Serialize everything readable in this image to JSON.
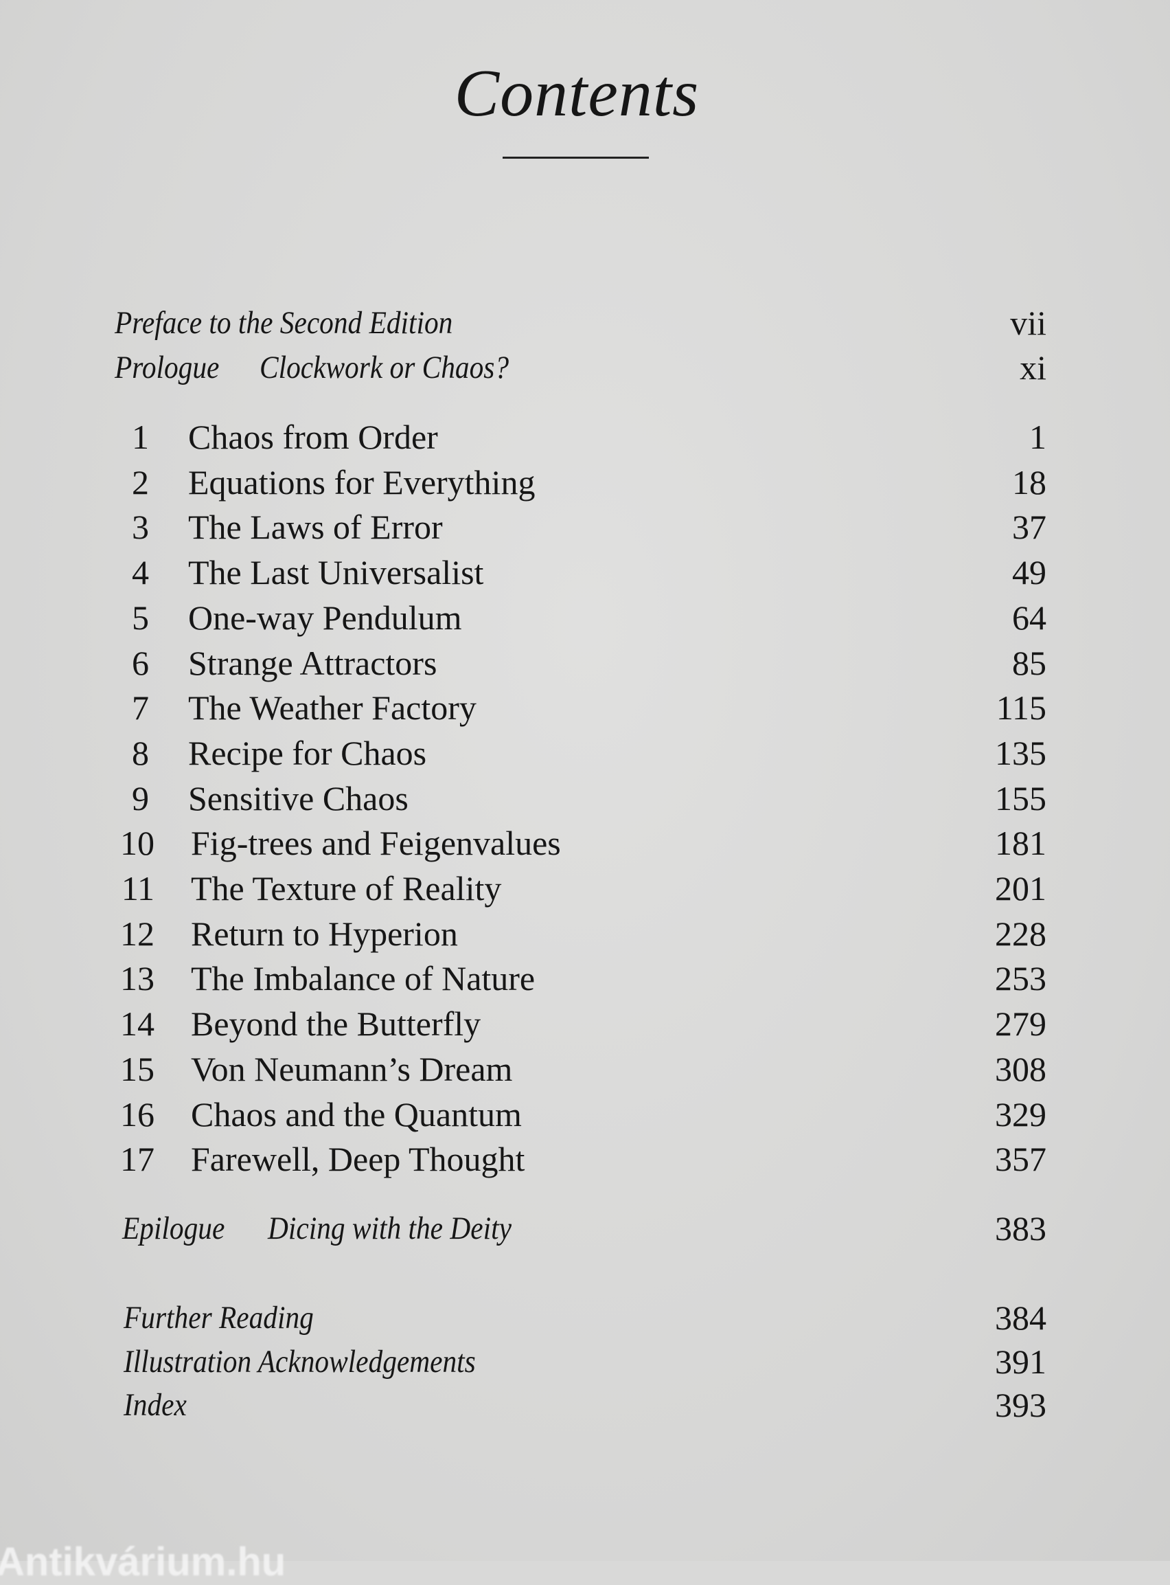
{
  "title": "Contents",
  "front": [
    {
      "label": "Preface to the Second Edition",
      "page": "vii"
    },
    {
      "label": "Prologue",
      "subtitle": "Clockwork or Chaos?",
      "page": "xi"
    }
  ],
  "chapters": [
    {
      "n": "1",
      "title": "Chaos from Order",
      "page": "1"
    },
    {
      "n": "2",
      "title": "Equations for Everything",
      "page": "18"
    },
    {
      "n": "3",
      "title": "The Laws of Error",
      "page": "37"
    },
    {
      "n": "4",
      "title": "The Last Universalist",
      "page": "49"
    },
    {
      "n": "5",
      "title": "One-way Pendulum",
      "page": "64"
    },
    {
      "n": "6",
      "title": "Strange Attractors",
      "page": "85"
    },
    {
      "n": "7",
      "title": "The Weather Factory",
      "page": "115"
    },
    {
      "n": "8",
      "title": "Recipe for Chaos",
      "page": "135"
    },
    {
      "n": "9",
      "title": "Sensitive Chaos",
      "page": "155"
    },
    {
      "n": "10",
      "title": "Fig-trees and Feigenvalues",
      "page": "181"
    },
    {
      "n": "11",
      "title": "The Texture of Reality",
      "page": "201"
    },
    {
      "n": "12",
      "title": "Return to Hyperion",
      "page": "228"
    },
    {
      "n": "13",
      "title": "The Imbalance of Nature",
      "page": "253"
    },
    {
      "n": "14",
      "title": "Beyond the Butterfly",
      "page": "279"
    },
    {
      "n": "15",
      "title": "Von Neumann’s Dream",
      "page": "308"
    },
    {
      "n": "16",
      "title": "Chaos and the Quantum",
      "page": "329"
    },
    {
      "n": "17",
      "title": "Farewell, Deep Thought",
      "page": "357"
    }
  ],
  "epilogue": {
    "label": "Epilogue",
    "subtitle": "Dicing with the Deity",
    "page": "383"
  },
  "back": [
    {
      "label": "Further Reading",
      "page": "384"
    },
    {
      "label": "Illustration Acknowledgements",
      "page": "391"
    },
    {
      "label": "Index",
      "page": "393"
    }
  ],
  "watermark": "Antikvárium.hu"
}
